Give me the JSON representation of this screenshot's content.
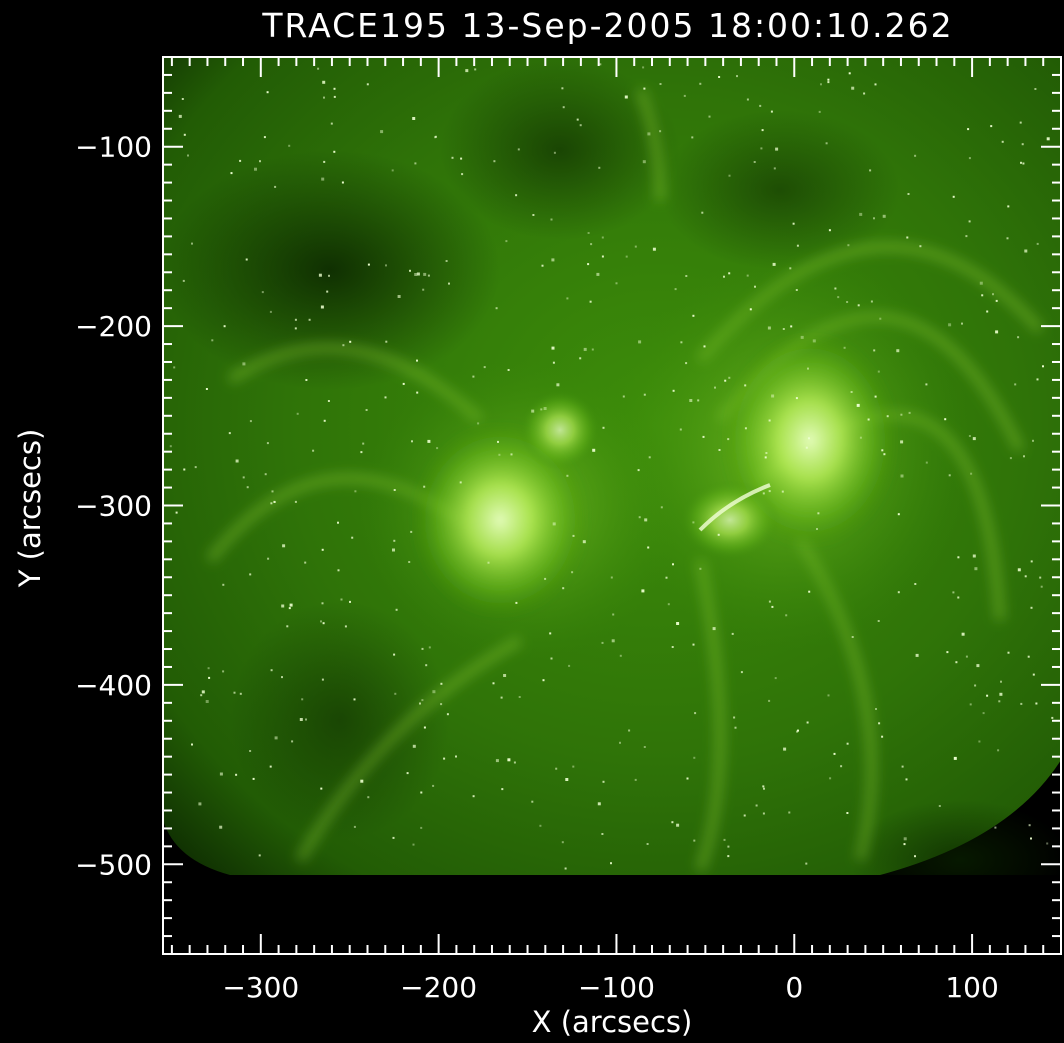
{
  "title": "TRACE195 13-Sep-2005 18:00:10.262",
  "colors": {
    "background": "#000000",
    "axes": "#ffffff",
    "image_tint": "#6fbf1f"
  },
  "chart_data": {
    "type": "heatmap",
    "title": "TRACE195 13-Sep-2005 18:00:10.262",
    "xlabel": "X (arcsecs)",
    "ylabel": "Y (arcsecs)",
    "xlim": [
      -355,
      150
    ],
    "ylim": [
      -550,
      -50
    ],
    "x_ticks": [
      -300,
      -200,
      -100,
      0,
      100
    ],
    "y_ticks": [
      -100,
      -200,
      -300,
      -400,
      -500
    ],
    "x_tick_labels": [
      "-300",
      "-200",
      "-100",
      "0",
      "100"
    ],
    "y_tick_labels": [
      "-100",
      "-200",
      "-300",
      "-400",
      "-500"
    ],
    "grid": false
  }
}
